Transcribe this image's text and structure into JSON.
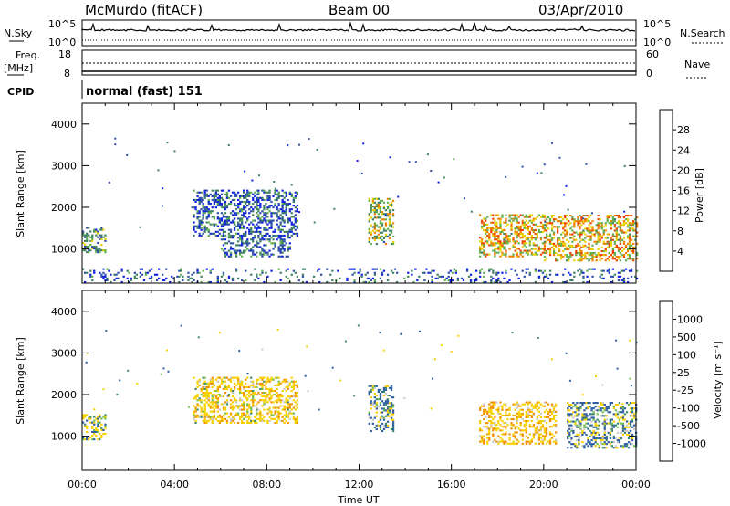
{
  "header": {
    "station": "McMurdo (fitACF)",
    "beam": "Beam 00",
    "date": "03/Apr/2010"
  },
  "status_panels": {
    "nsky_label": "N.Sky",
    "nsearch_label": "N.Search",
    "noise_ticks": [
      "10^5",
      "10^0"
    ],
    "freq_label": "Freq.",
    "freq_unit": "[MHz]",
    "freq_ticks": [
      "18",
      "8"
    ],
    "nave_label": "Nave",
    "nave_ticks": [
      "60",
      "0"
    ],
    "cpid_label": "CPID",
    "cpid_value": "normal (fast) 151"
  },
  "axes": {
    "ylabel": "Slant Range [km]",
    "xlabel": "Time UT",
    "yticks": [
      "1000",
      "2000",
      "3000",
      "4000"
    ],
    "xticks": [
      "00:00",
      "04:00",
      "08:00",
      "12:00",
      "16:00",
      "20:00",
      "00:00"
    ]
  },
  "colorbars": {
    "power": {
      "label": "Power [dB]",
      "ticks": [
        "4",
        "8",
        "12",
        "16",
        "20",
        "24",
        "28"
      ],
      "colors": [
        "#1020e0",
        "#2f4fa8",
        "#3f8060",
        "#60b050",
        "#e8d000",
        "#f08000",
        "#f04000",
        "#e00000"
      ]
    },
    "velocity": {
      "label": "Velocity [m s⁻¹]",
      "ticks": [
        "1000",
        "500",
        "100",
        "25",
        "-25",
        "-100",
        "-500",
        "-1000"
      ],
      "colors": [
        "#1030c0",
        "#2f5fa0",
        "#3f8a6a",
        "#6fc050",
        "#c8c8c8",
        "#f8d000",
        "#f09000",
        "#f05000",
        "#e00000"
      ]
    }
  },
  "chart_data": [
    {
      "type": "heatmap",
      "title": "Power",
      "xlabel": "Time UT",
      "ylabel": "Slant Range [km]",
      "xlim": [
        0,
        24
      ],
      "ylim": [
        180,
        4500
      ],
      "colorbar_range": [
        0,
        30
      ],
      "regions": [
        {
          "t": [
            0.0,
            1.0
          ],
          "r": [
            900,
            1500
          ],
          "value": 10
        },
        {
          "t": [
            4.8,
            9.3
          ],
          "r": [
            1300,
            2400
          ],
          "value": 6
        },
        {
          "t": [
            6.0,
            9.0
          ],
          "r": [
            800,
            1300
          ],
          "value": 6
        },
        {
          "t": [
            12.4,
            13.5
          ],
          "r": [
            1100,
            2200
          ],
          "value": 14
        },
        {
          "t": [
            17.2,
            20.0
          ],
          "r": [
            800,
            1800
          ],
          "value": 18
        },
        {
          "t": [
            20.0,
            24.0
          ],
          "r": [
            700,
            1800
          ],
          "value": 18
        },
        {
          "t": [
            0.0,
            24.0
          ],
          "r": [
            180,
            500
          ],
          "value": 6
        }
      ]
    },
    {
      "type": "heatmap",
      "title": "Velocity",
      "xlabel": "Time UT",
      "ylabel": "Slant Range [km]",
      "xlim": [
        0,
        24
      ],
      "ylim": [
        180,
        4500
      ],
      "colorbar_range": [
        -1000,
        1000
      ],
      "regions": [
        {
          "t": [
            0.0,
            1.0
          ],
          "r": [
            900,
            1500
          ],
          "value": -100
        },
        {
          "t": [
            4.8,
            9.3
          ],
          "r": [
            1300,
            2400
          ],
          "value": -300
        },
        {
          "t": [
            12.4,
            13.5
          ],
          "r": [
            1100,
            2200
          ],
          "value": 100
        },
        {
          "t": [
            17.2,
            20.5
          ],
          "r": [
            800,
            1800
          ],
          "value": -400
        },
        {
          "t": [
            21.0,
            24.0
          ],
          "r": [
            700,
            1800
          ],
          "value": 100
        }
      ]
    }
  ]
}
